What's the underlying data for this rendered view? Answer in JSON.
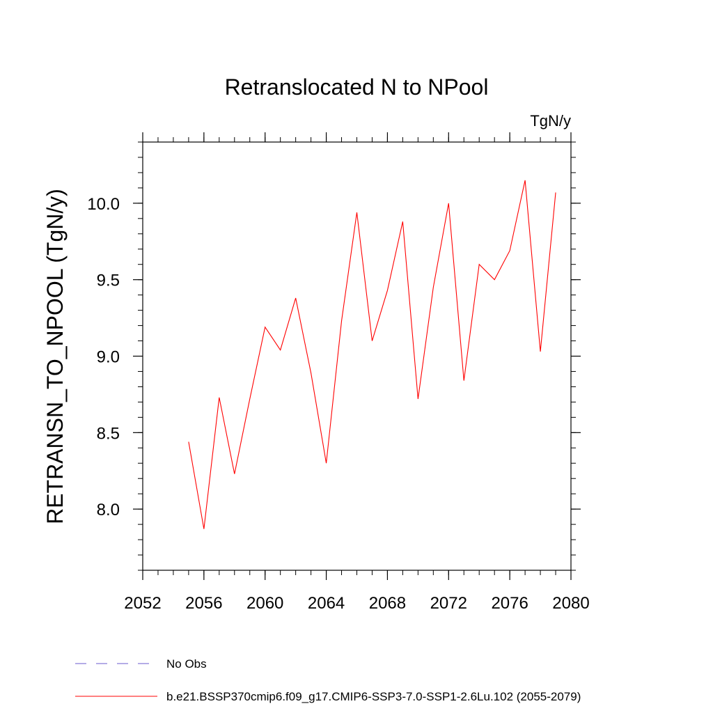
{
  "chart_data": {
    "type": "line",
    "title": "Retranslocated N to NPool",
    "units_label": "TgN/y",
    "ylabel": "RETRANSN_TO_NPOOL  (TgN/y)",
    "xlabel": "",
    "xlim": [
      2052,
      2080
    ],
    "ylim": [
      7.6,
      10.4
    ],
    "x_ticks": [
      "2052",
      "2056",
      "2060",
      "2064",
      "2068",
      "2072",
      "2076",
      "2080"
    ],
    "y_ticks": [
      "8.0",
      "8.5",
      "9.0",
      "9.5",
      "10.0"
    ],
    "x": [
      2055,
      2056,
      2057,
      2058,
      2059,
      2060,
      2061,
      2062,
      2063,
      2064,
      2065,
      2066,
      2067,
      2068,
      2069,
      2070,
      2071,
      2072,
      2073,
      2074,
      2075,
      2076,
      2077,
      2078,
      2079
    ],
    "series": [
      {
        "name": "b.e21.BSSP370cmip6.f09_g17.CMIP6-SSP3-7.0-SSP1-2.6Lu.102 (2055-2079)",
        "color": "#ff0000",
        "values": [
          8.44,
          7.87,
          8.73,
          8.23,
          8.72,
          9.19,
          9.04,
          9.38,
          8.89,
          8.3,
          9.23,
          9.94,
          9.1,
          9.43,
          9.88,
          8.72,
          9.45,
          10.0,
          8.84,
          9.6,
          9.5,
          9.69,
          10.15,
          9.03,
          10.07
        ]
      }
    ],
    "legend": [
      {
        "label": "No Obs",
        "color": "#6a5acd",
        "style": "dashed"
      },
      {
        "label": "b.e21.BSSP370cmip6.f09_g17.CMIP6-SSP3-7.0-SSP1-2.6Lu.102 (2055-2079)",
        "color": "#ff0000",
        "style": "solid"
      }
    ],
    "legend_position": "bottom",
    "grid": false
  }
}
